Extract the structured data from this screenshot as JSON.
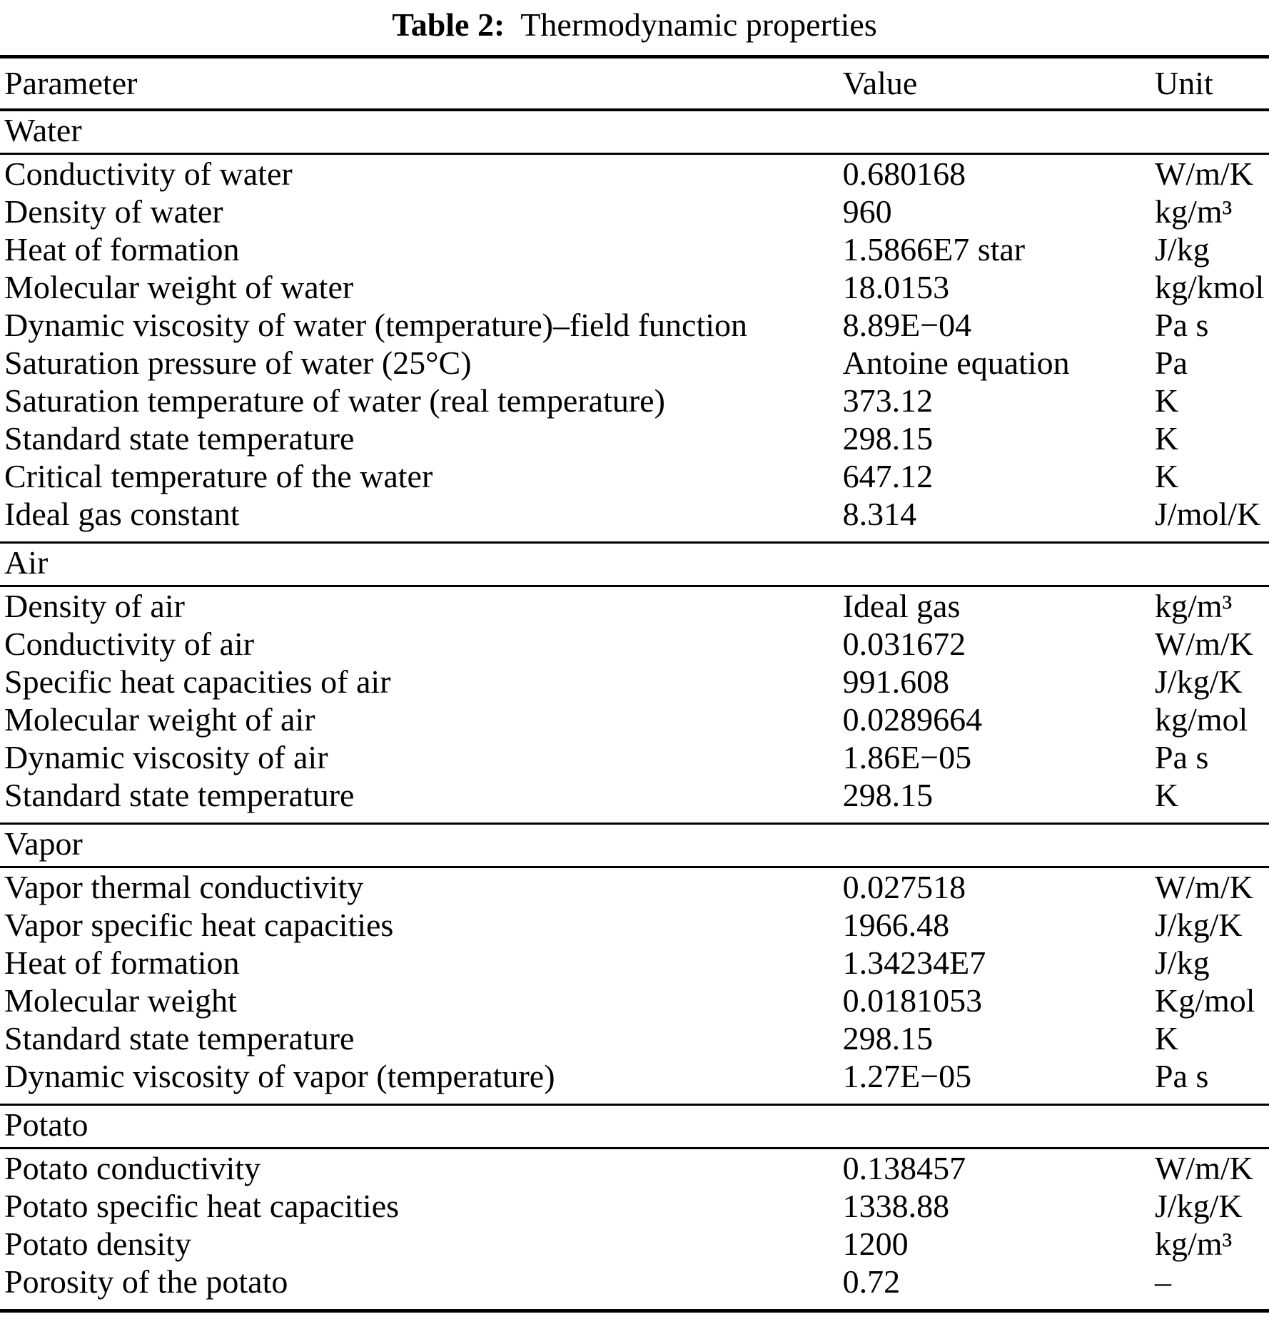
{
  "title": {
    "label": "Table 2:",
    "text": "Thermodynamic properties"
  },
  "columns": {
    "parameter": "Parameter",
    "value": "Value",
    "unit": "Unit"
  },
  "sections": [
    {
      "name": "Water",
      "rows": [
        {
          "parameter": "Conductivity of water",
          "value": "0.680168",
          "unit": "W/m/K"
        },
        {
          "parameter": "Density of water",
          "value": "960",
          "unit": "kg/m³"
        },
        {
          "parameter": "Heat of formation",
          "value": "1.5866E7 star",
          "unit": "J/kg"
        },
        {
          "parameter": "Molecular weight of water",
          "value": "18.0153",
          "unit": "kg/kmol"
        },
        {
          "parameter": "Dynamic viscosity of water (temperature)–field function",
          "value": "8.89E−04",
          "unit": "Pa s"
        },
        {
          "parameter": "Saturation pressure of water (25°C)",
          "value": "Antoine equation",
          "unit": "Pa"
        },
        {
          "parameter": "Saturation temperature of water (real temperature)",
          "value": "373.12",
          "unit": "K"
        },
        {
          "parameter": "Standard state temperature",
          "value": "298.15",
          "unit": "K"
        },
        {
          "parameter": "Critical temperature of the water",
          "value": "647.12",
          "unit": "K"
        },
        {
          "parameter": "Ideal gas constant",
          "value": "8.314",
          "unit": "J/mol/K"
        }
      ]
    },
    {
      "name": "Air",
      "rows": [
        {
          "parameter": "Density of air",
          "value": "Ideal gas",
          "unit": "kg/m³"
        },
        {
          "parameter": "Conductivity of air",
          "value": "0.031672",
          "unit": "W/m/K"
        },
        {
          "parameter": "Specific heat capacities of air",
          "value": "991.608",
          "unit": "J/kg/K"
        },
        {
          "parameter": "Molecular weight of air",
          "value": "0.0289664",
          "unit": "kg/mol"
        },
        {
          "parameter": "Dynamic viscosity of air",
          "value": "1.86E−05",
          "unit": "Pa s"
        },
        {
          "parameter": "Standard state temperature",
          "value": "298.15",
          "unit": "K"
        }
      ]
    },
    {
      "name": "Vapor",
      "rows": [
        {
          "parameter": "Vapor thermal conductivity",
          "value": "0.027518",
          "unit": "W/m/K"
        },
        {
          "parameter": "Vapor specific heat capacities",
          "value": "1966.48",
          "unit": "J/kg/K"
        },
        {
          "parameter": "Heat of formation",
          "value": "1.34234E7",
          "unit": "J/kg"
        },
        {
          "parameter": "Molecular weight",
          "value": "0.0181053",
          "unit": "Kg/mol"
        },
        {
          "parameter": "Standard state temperature",
          "value": "298.15",
          "unit": "K"
        },
        {
          "parameter": "Dynamic viscosity of vapor (temperature)",
          "value": "1.27E−05",
          "unit": "Pa s"
        }
      ]
    },
    {
      "name": "Potato",
      "rows": [
        {
          "parameter": "Potato conductivity",
          "value": "0.138457",
          "unit": "W/m/K"
        },
        {
          "parameter": "Potato specific heat capacities",
          "value": "1338.88",
          "unit": "J/kg/K"
        },
        {
          "parameter": "Potato density",
          "value": "1200",
          "unit": "kg/m³"
        },
        {
          "parameter": "Porosity of the potato",
          "value": "0.72",
          "unit": "–"
        }
      ]
    }
  ]
}
